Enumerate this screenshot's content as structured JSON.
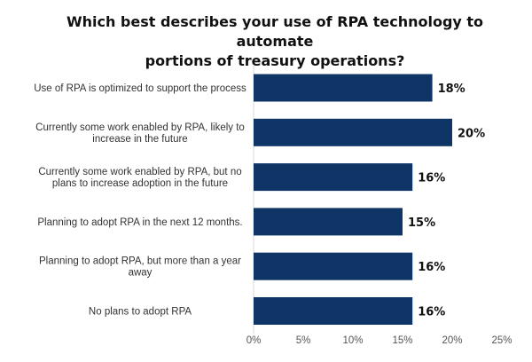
{
  "chart_data": {
    "type": "bar",
    "orientation": "horizontal",
    "title": "Which best describes your use of RPA technology to automate\nportions of treasury operations?",
    "categories": [
      "Use of RPA is optimized to support the process",
      "Currently some work enabled by RPA, likely to\nincrease in the future",
      "Currently some work enabled by RPA, but no\nplans to increase adoption in the future",
      "Planning to adopt RPA in the next 12 months.",
      "Planning to adopt RPA, but more than a year\naway",
      "No plans to adopt RPA"
    ],
    "values": [
      18,
      20,
      16,
      15,
      16,
      16
    ],
    "data_labels": [
      "18%",
      "20%",
      "16%",
      "15%",
      "16%",
      "16%"
    ],
    "xlim": [
      0,
      25
    ],
    "ticks": [
      0,
      5,
      10,
      15,
      20,
      25
    ],
    "tick_labels": [
      "0%",
      "5%",
      "10%",
      "15%",
      "20%",
      "25%"
    ],
    "bar_color": "#0e3566",
    "grid": false,
    "xlabel": "",
    "ylabel": ""
  }
}
